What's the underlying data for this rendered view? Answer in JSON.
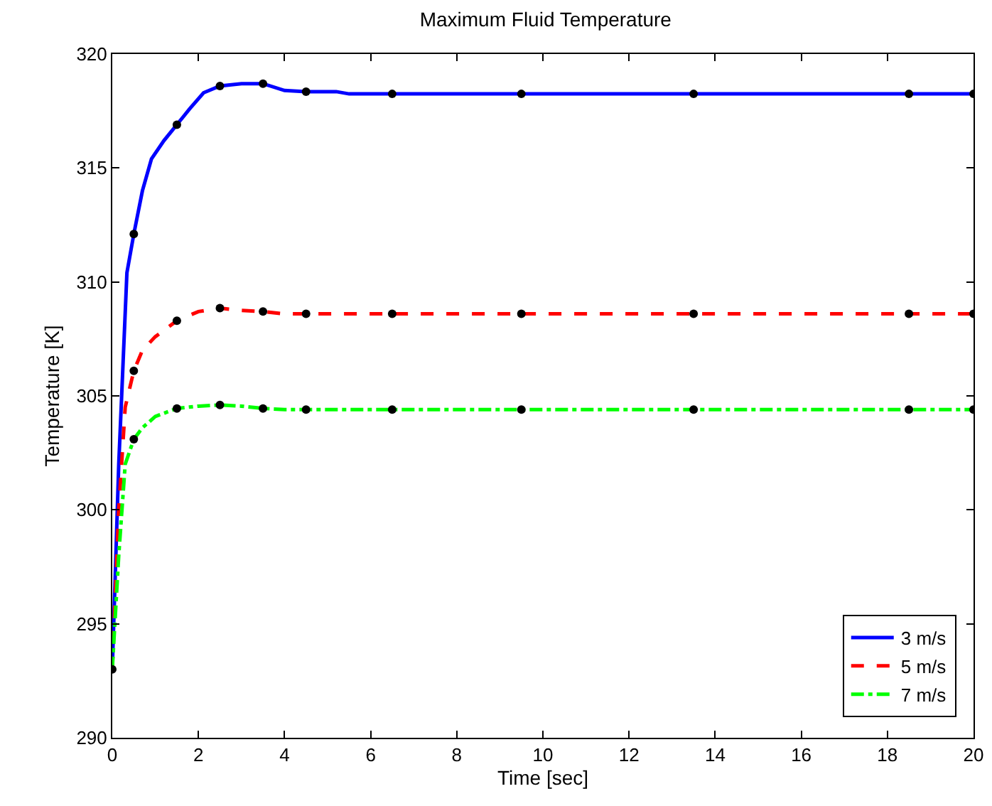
{
  "chart_data": {
    "type": "line",
    "title": "Maximum Fluid Temperature",
    "xlabel": "Time [sec]",
    "ylabel": "Temperature [K]",
    "xlim": [
      0,
      20
    ],
    "ylim": [
      290,
      320
    ],
    "xticks": [
      0,
      2,
      4,
      6,
      8,
      10,
      12,
      14,
      16,
      18,
      20
    ],
    "yticks": [
      290,
      295,
      300,
      305,
      310,
      315,
      320
    ],
    "grid": false,
    "legend": "bottom right",
    "series": [
      {
        "name": "3 m/s",
        "color": "#0000ff",
        "line_style": "solid",
        "marker": "none",
        "x": [
          0,
          0.15,
          0.34,
          0.5,
          0.7,
          0.91,
          1.2,
          1.5,
          1.8,
          2.12,
          2.5,
          3.0,
          3.5,
          4.0,
          4.5,
          5.2,
          5.5,
          20
        ],
        "values": [
          293,
          302,
          310.4,
          312.1,
          314,
          315.4,
          316.2,
          316.9,
          317.6,
          318.3,
          318.6,
          318.7,
          318.7,
          318.4,
          318.35,
          318.35,
          318.25,
          318.25
        ]
      },
      {
        "name": "5 m/s",
        "color": "#ff0000",
        "line_style": "dashed",
        "marker": "none",
        "x": [
          0,
          0.15,
          0.3,
          0.5,
          0.7,
          1.0,
          1.5,
          2.0,
          2.5,
          3.0,
          3.5,
          4.0,
          4.5,
          20
        ],
        "values": [
          293,
          300,
          304.5,
          306.1,
          307,
          307.6,
          308.3,
          308.7,
          308.85,
          308.75,
          308.7,
          308.6,
          308.6,
          308.6
        ]
      },
      {
        "name": "7 m/s",
        "color": "#00ff00",
        "line_style": "dashdot",
        "marker": "none",
        "x": [
          0,
          0.15,
          0.3,
          0.5,
          0.7,
          1.0,
          1.5,
          2.0,
          2.5,
          3.0,
          3.5,
          4.0,
          20
        ],
        "values": [
          293,
          298,
          302,
          303.1,
          303.6,
          304.1,
          304.45,
          304.55,
          304.6,
          304.55,
          304.45,
          304.4,
          304.4
        ]
      },
      {
        "type": "scatter",
        "color": "#000000",
        "marker": "circle",
        "x": [
          0,
          0.5,
          1.5,
          2.5,
          3.5,
          4.5,
          6.5,
          9.5,
          13.5,
          18.5,
          20
        ],
        "values": [
          293,
          312.1,
          316.9,
          318.6,
          318.7,
          318.35,
          318.25,
          318.25,
          318.25,
          318.25,
          318.25
        ]
      },
      {
        "type": "scatter",
        "color": "#000000",
        "marker": "circle",
        "x": [
          0.5,
          1.5,
          2.5,
          3.5,
          4.5,
          6.5,
          9.5,
          13.5,
          18.5,
          20
        ],
        "values": [
          306.1,
          308.3,
          308.85,
          308.7,
          308.6,
          308.6,
          308.6,
          308.6,
          308.6,
          308.6
        ]
      },
      {
        "type": "scatter",
        "color": "#000000",
        "marker": "circle",
        "x": [
          0.5,
          1.5,
          2.5,
          3.5,
          4.5,
          6.5,
          9.5,
          13.5,
          18.5,
          20
        ],
        "values": [
          303.1,
          304.45,
          304.6,
          304.45,
          304.4,
          304.4,
          304.4,
          304.4,
          304.4,
          304.4
        ]
      }
    ]
  }
}
